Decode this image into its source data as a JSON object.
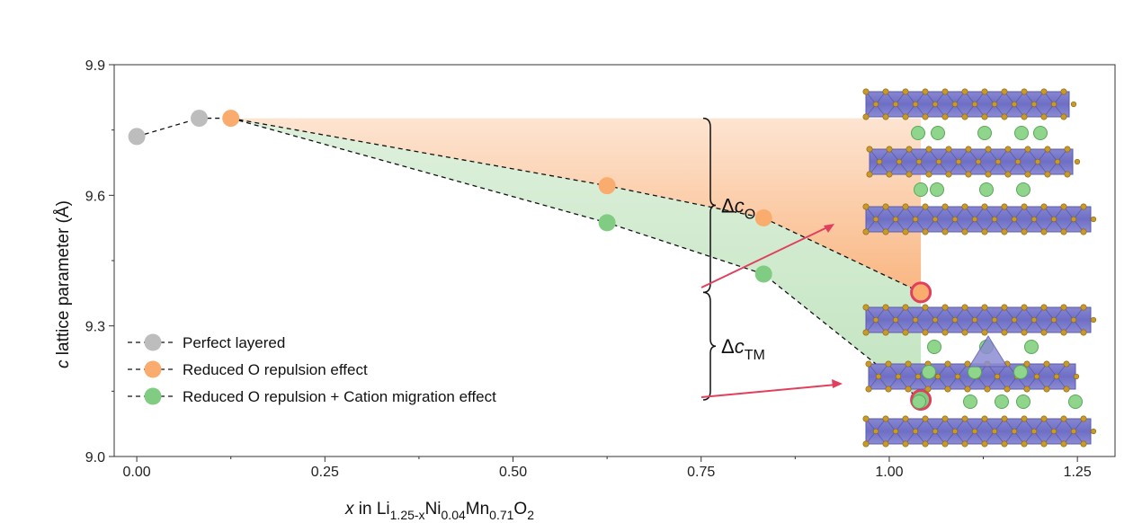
{
  "chart_data": {
    "type": "line",
    "xlabel": {
      "italic": "x",
      "main": " in Li",
      "sub1": "1.25-x",
      "mid1": "Ni",
      "sub2": "0.04",
      "mid2": "Mn",
      "sub3": "0.71",
      "mid3": "O",
      "sub4": "2"
    },
    "ylabel": {
      "italic": "c",
      "main": " lattice parameter (Å)"
    },
    "xlim": [
      -0.03,
      1.3
    ],
    "ylim": [
      9.0,
      9.9
    ],
    "xticks": [
      "0.00",
      "0.25",
      "0.50",
      "0.75",
      "1.00",
      "1.25"
    ],
    "xtick_values": [
      0.0,
      0.25,
      0.5,
      0.75,
      1.0,
      1.25
    ],
    "yticks": [
      "9.0",
      "9.3",
      "9.6",
      "9.9"
    ],
    "ytick_values": [
      9.0,
      9.3,
      9.6,
      9.9
    ],
    "series": [
      {
        "name": "Perfect layered",
        "color": "#bdbdbd",
        "x": [
          0.0,
          0.083
        ],
        "y": [
          9.735,
          9.777
        ]
      },
      {
        "name": "Reduced O repulsion effect",
        "color": "#f9ac6e",
        "x": [
          0.125,
          0.625,
          0.833,
          1.042
        ],
        "y": [
          9.777,
          9.622,
          9.548,
          9.377
        ]
      },
      {
        "name": "Reduced O repulsion + Cation migration effect",
        "color": "#7fcc82",
        "x": [
          0.625,
          0.833,
          1.042
        ],
        "y": [
          9.537,
          9.419,
          9.13
        ]
      }
    ],
    "highlight_color": "#e0405e",
    "highlight_points": [
      {
        "x": 1.042,
        "y": 9.377
      },
      {
        "x": 1.042,
        "y": 9.13
      }
    ],
    "brackets": [
      {
        "label_main": "Δ",
        "label_italic": "c",
        "label_sub": "O",
        "y_top": 9.777,
        "y_bottom": 9.377
      },
      {
        "label_main": "Δ",
        "label_italic": "c",
        "label_sub": "TM",
        "y_top": 9.377,
        "y_bottom": 9.13
      }
    ],
    "legend_position": "bottom-left",
    "grid": false
  }
}
